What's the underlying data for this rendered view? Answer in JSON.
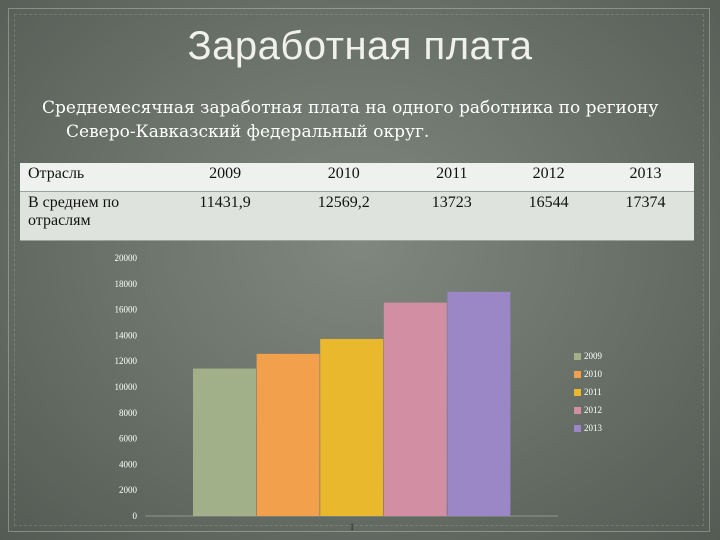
{
  "title": "Заработная плата",
  "subtitle": {
    "line1": "Среднемесячная заработная плата на одного работника по региону",
    "line2": "Северо-Кавказский федеральный округ."
  },
  "table": {
    "headers": [
      "Отрасль",
      "2009",
      "2010",
      "2011",
      "2012",
      "2013"
    ],
    "row": [
      "В среднем по отраслям",
      "11431,9",
      "12569,2",
      "13723",
      "16544",
      "17374"
    ]
  },
  "chart_data": {
    "type": "bar",
    "categories": [
      "1"
    ],
    "series": [
      {
        "name": "2009",
        "values": [
          11431.9
        ],
        "color": "#a2b08a"
      },
      {
        "name": "2010",
        "values": [
          12569.2
        ],
        "color": "#f2a04c"
      },
      {
        "name": "2011",
        "values": [
          13723
        ],
        "color": "#eab82d"
      },
      {
        "name": "2012",
        "values": [
          16544
        ],
        "color": "#d28ea3"
      },
      {
        "name": "2013",
        "values": [
          17374
        ],
        "color": "#9c87c6"
      }
    ],
    "yticks": [
      "0",
      "2000",
      "4000",
      "6000",
      "8000",
      "10000",
      "12000",
      "14000",
      "16000",
      "18000",
      "20000"
    ],
    "ylim": [
      0,
      20000
    ],
    "grid": false,
    "legend": "right"
  }
}
